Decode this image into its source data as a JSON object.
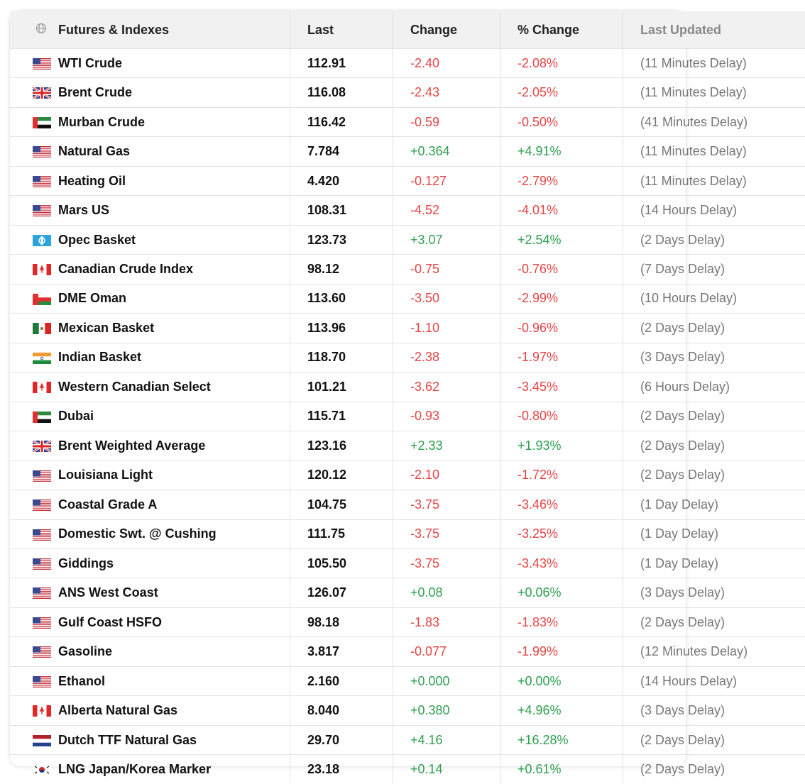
{
  "table": {
    "headers": [
      "Futures & Indexes",
      "Last",
      "Change",
      "% Change",
      "Last Updated"
    ],
    "rows": [
      [
        "WTI Crude",
        "112.91",
        "-2.40",
        "-2.08%",
        "(11 Minutes Delay)"
      ],
      [
        "Brent Crude",
        "116.08",
        "-2.43",
        "-2.05%",
        "(11 Minutes Delay)"
      ],
      [
        "Murban Crude",
        "116.42",
        "-0.59",
        "-0.50%",
        "(41 Minutes Delay)"
      ],
      [
        "Natural Gas",
        "7.784",
        "+0.364",
        "+4.91%",
        "(11 Minutes Delay)"
      ],
      [
        "Heating Oil",
        "4.420",
        "-0.127",
        "-2.79%",
        "(11 Minutes Delay)"
      ],
      [
        "Mars US",
        "108.31",
        "-4.52",
        "-4.01%",
        "(14 Hours Delay)"
      ],
      [
        "Opec Basket",
        "123.73",
        "+3.07",
        "+2.54%",
        "(2 Days Delay)"
      ],
      [
        "Canadian Crude Index",
        "98.12",
        "-0.75",
        "-0.76%",
        "(7 Days Delay)"
      ],
      [
        "DME Oman",
        "113.60",
        "-3.50",
        "-2.99%",
        "(10 Hours Delay)"
      ],
      [
        "Mexican Basket",
        "113.96",
        "-1.10",
        "-0.96%",
        "(2 Days Delay)"
      ],
      [
        "Indian Basket",
        "118.70",
        "-2.38",
        "-1.97%",
        "(3 Days Delay)"
      ],
      [
        "Western Canadian Select",
        "101.21",
        "-3.62",
        "-3.45%",
        "(6 Hours Delay)"
      ],
      [
        "Dubai",
        "115.71",
        "-0.93",
        "-0.80%",
        "(2 Days Delay)"
      ],
      [
        "Brent Weighted Average",
        "123.16",
        "+2.33",
        "+1.93%",
        "(2 Days Delay)"
      ],
      [
        "Louisiana Light",
        "120.12",
        "-2.10",
        "-1.72%",
        "(2 Days Delay)"
      ],
      [
        "Coastal Grade A",
        "104.75",
        "-3.75",
        "-3.46%",
        "(1 Day Delay)"
      ],
      [
        "Domestic Swt. @ Cushing",
        "111.75",
        "-3.75",
        "-3.25%",
        "(1 Day Delay)"
      ],
      [
        "Giddings",
        "105.50",
        "-3.75",
        "-3.43%",
        "(1 Day Delay)"
      ],
      [
        "ANS West Coast",
        "126.07",
        "+0.08",
        "+0.06%",
        "(3 Days Delay)"
      ],
      [
        "Gulf Coast HSFO",
        "98.18",
        "-1.83",
        "-1.83%",
        "(2 Days Delay)"
      ],
      [
        "Gasoline",
        "3.817",
        "-0.077",
        "-1.99%",
        "(12 Minutes Delay)"
      ],
      [
        "Ethanol",
        "2.160",
        "+0.000",
        "+0.00%",
        "(14 Hours Delay)"
      ],
      [
        "Alberta Natural Gas",
        "8.040",
        "+0.380",
        "+4.96%",
        "(3 Days Delay)"
      ],
      [
        "Dutch TTF Natural Gas",
        "29.70",
        "+4.16",
        "+16.28%",
        "(2 Days Delay)"
      ],
      [
        "LNG Japan/Korea Marker",
        "23.18",
        "+0.14",
        "+0.61%",
        "(2 Days Delay)"
      ]
    ]
  }
}
